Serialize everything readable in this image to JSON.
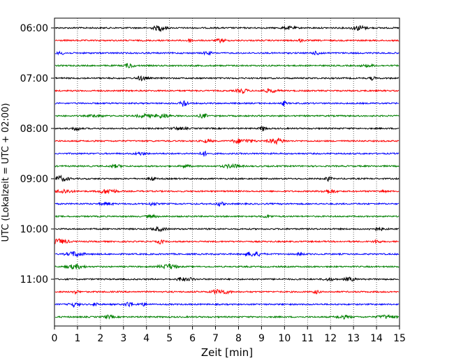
{
  "chart_data": {
    "type": "line",
    "title": "",
    "xlabel": "Zeit  [min]",
    "ylabel": "UTC (Lokalzeit = UTC + 02:00)",
    "xlim": [
      0,
      15
    ],
    "x_ticks": [
      "0",
      "1",
      "2",
      "3",
      "4",
      "5",
      "6",
      "7",
      "8",
      "9",
      "10",
      "11",
      "12",
      "13",
      "14",
      "15"
    ],
    "y_ticks": [
      "06:00",
      "07:00",
      "08:00",
      "09:00",
      "10:00",
      "11:00"
    ],
    "trace_interval_min": 15,
    "start_time": "06:00",
    "num_traces": 24,
    "trace_colors": [
      "#000000",
      "#ff0000",
      "#0000ff",
      "#008000"
    ],
    "grid": "x dotted"
  }
}
